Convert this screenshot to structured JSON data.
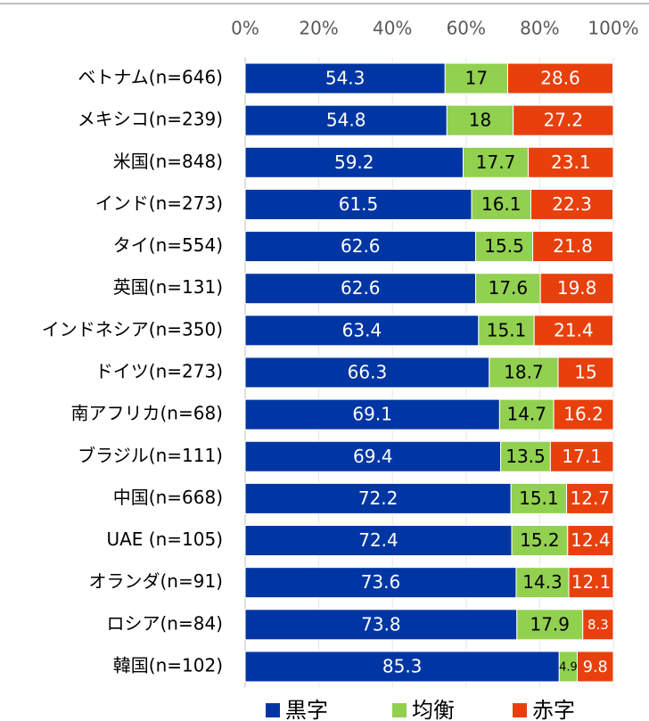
{
  "chart_data": {
    "type": "stacked_barh",
    "categories": [
      "ベトナム(n=646)",
      "メキシコ(n=239)",
      "米国(n=848)",
      "インド(n=273)",
      "タイ(n=554)",
      "英国(n=131)",
      "インドネシア(n=350)",
      "ドイツ(n=273)",
      "南アフリカ(n=68)",
      "ブラジル(n=111)",
      "中国(n=668)",
      "UAE (n=105)",
      "オランダ(n=91)",
      "ロシア(n=84)",
      "韓国(n=102)"
    ],
    "series": [
      {
        "name": "黒字",
        "color": "#0036a3",
        "values": [
          54.3,
          54.8,
          59.2,
          61.5,
          62.6,
          62.6,
          63.4,
          66.3,
          69.1,
          69.4,
          72.2,
          72.4,
          73.6,
          73.8,
          85.3
        ]
      },
      {
        "name": "均衡",
        "color": "#92d050",
        "values": [
          17.0,
          18.0,
          17.7,
          16.1,
          15.5,
          17.6,
          15.1,
          18.7,
          14.7,
          13.5,
          15.1,
          15.2,
          14.3,
          17.9,
          4.9
        ]
      },
      {
        "name": "赤字",
        "color": "#e8400c",
        "values": [
          28.6,
          27.2,
          23.1,
          22.3,
          21.8,
          19.8,
          21.4,
          15.0,
          16.2,
          17.1,
          12.7,
          12.4,
          12.1,
          8.3,
          9.8
        ]
      }
    ],
    "xlim": [
      0,
      100
    ],
    "xticks": [
      {
        "value": 0,
        "label": "0%"
      },
      {
        "value": 20,
        "label": "20%"
      },
      {
        "value": 40,
        "label": "40%"
      },
      {
        "value": 60,
        "label": "60%"
      },
      {
        "value": 80,
        "label": "80%"
      },
      {
        "value": 100,
        "label": "100%"
      }
    ],
    "grid": true
  }
}
